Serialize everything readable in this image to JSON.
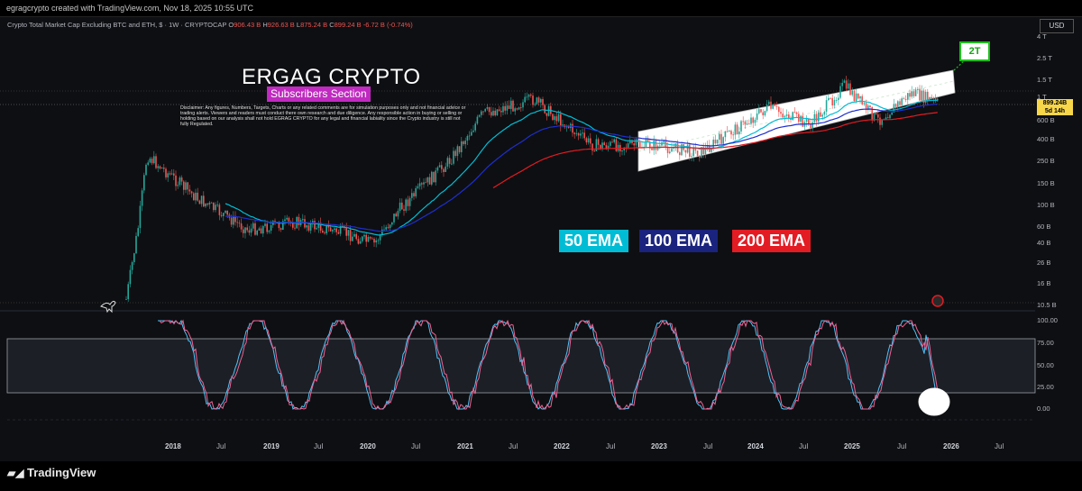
{
  "header": {
    "author_line": "egragcrypto created with TradingView.com, Nov 18, 2025 10:55 UTC"
  },
  "symbol": {
    "name": "Crypto Total Market Cap Excluding BTC and ETH, $ · 1W · CRYPTOCAP",
    "o_label": "O",
    "o": "906.43 B",
    "h_label": "H",
    "h": "926.63 B",
    "l_label": "L",
    "l": "875.24 B",
    "c_label": "C",
    "c": "899.24 B",
    "change": "-6.72 B (-0.74%)"
  },
  "currency": "USD",
  "price_tag": {
    "value": "899.24B",
    "timer": "5d 14h"
  },
  "overlay": {
    "title": "ERGAG CRYPTO",
    "subtitle": "Subscribers Section",
    "disclaimer": "Disclaimer: Any figures, Numbers, Targets, Charts or any related comments are for simulation purposes only and not financial advice or trading alerts. Viewers and readers must conduct there own research and due diligence. Any responsible action in buying or selling or holding based on our analysis shall not hold EGRAG CRYPTO for any legal and financial labiality since the Crypto industry is still not fully Regulated.",
    "target": "2T",
    "ema50": "50 EMA",
    "ema100": "100 EMA",
    "ema200": "200 EMA"
  },
  "colors": {
    "bull": "#26a69a",
    "bear": "#ef5350",
    "ema50": "#00bcd4",
    "ema100": "#1e2ecf",
    "ema200": "#e31b23",
    "rsi_k": "#4fc3f7",
    "rsi_d": "#f06292"
  },
  "y_axis": [
    "4 T",
    "2.5 T",
    "1.5 T",
    "1 T",
    "600 B",
    "400 B",
    "250 B",
    "150 B",
    "100 B",
    "60 B",
    "40 B",
    "26 B",
    "16 B",
    "10.5 B"
  ],
  "osc_axis": [
    "100.00",
    "75.00",
    "50.00",
    "25.00",
    "0.00"
  ],
  "x_axis": [
    "2018",
    "Jul",
    "2019",
    "Jul",
    "2020",
    "Jul",
    "2021",
    "Jul",
    "2022",
    "Jul",
    "2023",
    "Jul",
    "2024",
    "Jul",
    "2025",
    "Jul",
    "2026",
    "Jul"
  ],
  "footer": {
    "brand": "TradingView"
  },
  "chart_data": {
    "type": "candlestick",
    "title": "Crypto Total Market Cap Excluding BTC and ETH, $ · 1W · CRYPTOCAP",
    "y_scale": "log",
    "ylim": [
      "10.5 B",
      "4 T"
    ],
    "series": [
      {
        "name": "50 EMA"
      },
      {
        "name": "100 EMA"
      },
      {
        "name": "200 EMA"
      }
    ],
    "approx_close_by_period": {
      "x": [
        "2017-12",
        "2018-01",
        "2018-07",
        "2019-01",
        "2019-07",
        "2020-01",
        "2020-04",
        "2020-07",
        "2021-01",
        "2021-05",
        "2021-11",
        "2022-06",
        "2023-01",
        "2023-07",
        "2024-03",
        "2024-08",
        "2024-12",
        "2025-04",
        "2025-08",
        "2025-11"
      ],
      "y_billions": [
        60,
        280,
        110,
        55,
        65,
        50,
        40,
        85,
        250,
        700,
        950,
        350,
        350,
        300,
        800,
        550,
        1300,
        600,
        1100,
        899.24
      ]
    }
  }
}
